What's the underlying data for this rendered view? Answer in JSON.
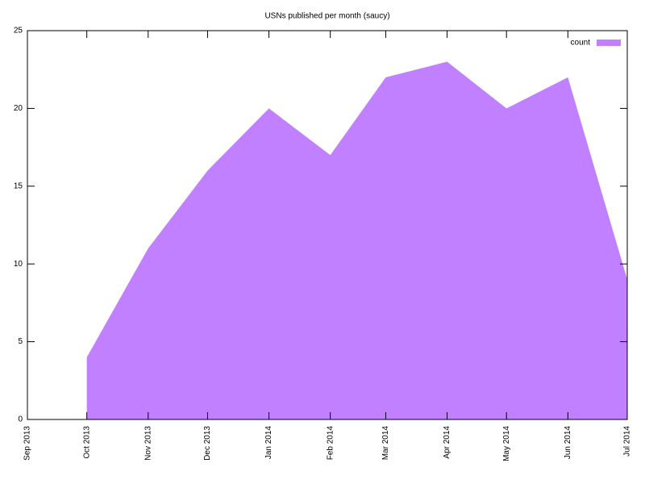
{
  "chart_data": {
    "type": "area",
    "title": "USNs published per month (saucy)",
    "x": [
      "Oct 2013",
      "Nov 2013",
      "Dec 2013",
      "Jan 2014",
      "Feb 2014",
      "Mar 2014",
      "Apr 2014",
      "May 2014",
      "Jun 2014",
      "Jul 2014"
    ],
    "series": [
      {
        "name": "count",
        "color": "#c080ff",
        "values": [
          4,
          11,
          16,
          20,
          17,
          22,
          23,
          20,
          22,
          9
        ]
      }
    ],
    "xlim": [
      "Sep 2013",
      "Jul 2014"
    ],
    "xticks": [
      "Sep 2013",
      "Oct 2013",
      "Nov 2013",
      "Dec 2013",
      "Jan 2014",
      "Feb 2014",
      "Mar 2014",
      "Apr 2014",
      "May 2014",
      "Jun 2014",
      "Jul 2014"
    ],
    "ylim": [
      0,
      25
    ],
    "yticks": [
      0,
      5,
      10,
      15,
      20,
      25
    ],
    "legend": "top right"
  }
}
